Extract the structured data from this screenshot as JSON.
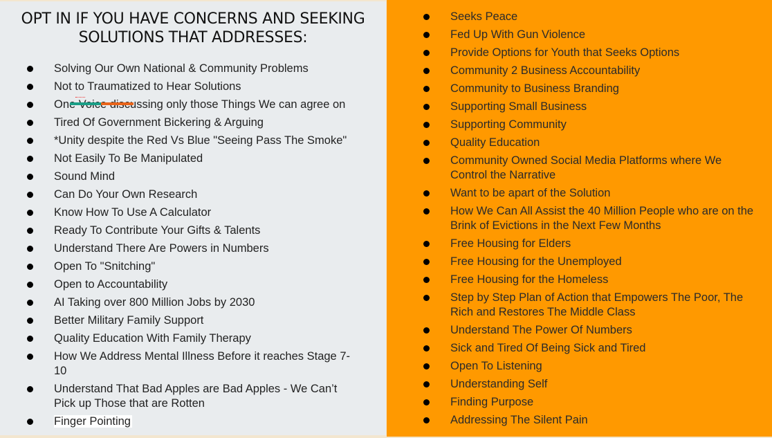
{
  "left": {
    "title": "OPT IN IF YOU HAVE CONCERNS AND SEEKING SOLUTIONS THAT ADDRESSES:",
    "items": [
      "Solving Our Own National & Community Problems",
      "Not to Traumatized to Hear Solutions",
      "One Voice discussing only those Things We can agree on",
      "Tired Of Government Bickering & Arguing",
      "*Unity despite the Red Vs Blue \"Seeing Pass The Smoke\"",
      "Not Easily To Be Manipulated",
      "Sound Mind",
      "Can Do Your Own Research",
      "Know How To Use A Calculator",
      "Ready To Contribute Your Gifts & Talents",
      "Understand There Are Powers in Numbers",
      "Open To \"Snitching\"",
      "Open to Accountability",
      "AI Taking over 800 Million Jobs by 2030",
      "Better Military Family Support",
      "Quality Education With Family Therapy",
      "How We Address Mental Illness Before it reaches Stage 7-10",
      "Understand That Bad Apples are Bad Apples - We Can’t Pick up Those that are Rotten",
      "Finger Pointing"
    ]
  },
  "right": {
    "items": [
      "Seeks Peace",
      "Fed Up With Gun Violence",
      "Provide Options for Youth that Seeks Options",
      "Community 2 Business Accountability",
      "Community to Business Branding",
      "Supporting Small Business",
      "Supporting Community",
      "Quality Education",
      "Community Owned Social Media Platforms where We Control the Narrative",
      "Want to be apart of the Solution",
      "How We Can All Assist the 40 Million People who are on the Brink of Evictions in the Next Few Months",
      "Free Housing for Elders",
      "Free Housing for the Unemployed",
      "Free Housing for the Homeless",
      "Step by Step Plan of Action that Empowers The Poor, The Rich and Restores The Middle Class",
      "Understand The Power Of Numbers",
      "Sick and Tired Of Being Sick and Tired",
      "Open To Listening",
      "Understanding Self",
      "Finding Purpose",
      "Addressing The Silent Pain"
    ],
    "background": "#ff9900"
  }
}
